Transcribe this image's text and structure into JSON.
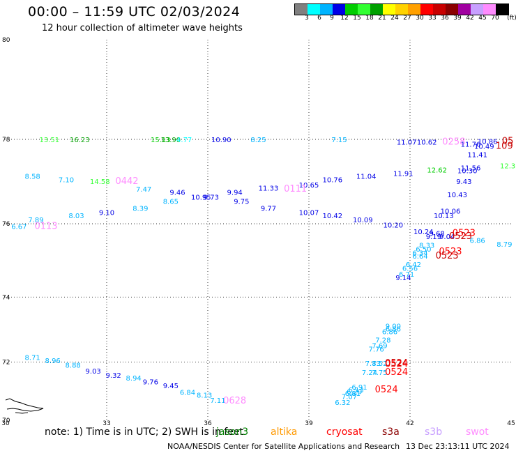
{
  "title": "00:00 – 11:59 UTC 02/03/2024",
  "subtitle": "12 hour collection of altimeter wave heights",
  "colorbar": {
    "colors": [
      "#808080",
      "#00ffff",
      "#00b4ff",
      "#0000e6",
      "#00cd00",
      "#32ff32",
      "#00a000",
      "#ffff00",
      "#ffd200",
      "#ffa000",
      "#ff0000",
      "#c80000",
      "#8b0000",
      "#a000a0",
      "#c8a0ff",
      "#ff8cff",
      "#000000"
    ],
    "labels": [
      "3",
      "6",
      "9",
      "12",
      "15",
      "18",
      "21",
      "24",
      "27",
      "30",
      "33",
      "36",
      "39",
      "42",
      "45",
      "70"
    ],
    "unit": "(ft)"
  },
  "axes": {
    "lon_labels": [
      "30",
      "33",
      "36",
      "39",
      "42",
      "45"
    ],
    "lat_labels": [
      "80",
      "78",
      "76",
      "74",
      "72",
      "70"
    ]
  },
  "observations": [
    {
      "text": "13.51",
      "lon": 31.3,
      "lat": 77.94,
      "color": "#32ff32"
    },
    {
      "text": "16.23",
      "lon": 32.2,
      "lat": 77.94,
      "color": "#00a000"
    },
    {
      "text": "15.13",
      "lon": 34.6,
      "lat": 77.94,
      "color": "#00cd00"
    },
    {
      "text": "13.90",
      "lon": 34.9,
      "lat": 77.94,
      "color": "#00a000"
    },
    {
      "text": "4.77",
      "lon": 35.3,
      "lat": 77.94,
      "color": "#00ffff"
    },
    {
      "text": "10.90",
      "lon": 36.4,
      "lat": 77.94,
      "color": "#0000e6"
    },
    {
      "text": "8.25",
      "lon": 37.5,
      "lat": 77.94,
      "color": "#00b4ff"
    },
    {
      "text": "7.15",
      "lon": 39.9,
      "lat": 77.94,
      "color": "#00b4ff"
    },
    {
      "text": "11.07",
      "lon": 41.9,
      "lat": 77.88,
      "color": "#0000e6"
    },
    {
      "text": "10.62",
      "lon": 42.5,
      "lat": 77.88,
      "color": "#0000e6"
    },
    {
      "text": "0258",
      "lon": 43.3,
      "lat": 77.88,
      "color": "#ff8cff",
      "type": "time"
    },
    {
      "text": "10.86",
      "lon": 44.3,
      "lat": 77.9,
      "color": "#0000e6"
    },
    {
      "text": "05",
      "lon": 44.9,
      "lat": 77.9,
      "color": "#c80000",
      "type": "time"
    },
    {
      "text": "11.76",
      "lon": 43.8,
      "lat": 77.84,
      "color": "#0000e6"
    },
    {
      "text": "10.49",
      "lon": 44.2,
      "lat": 77.79,
      "color": "#0000e6"
    },
    {
      "text": "109",
      "lon": 44.8,
      "lat": 77.79,
      "color": "#c80000",
      "type": "time"
    },
    {
      "text": "11.41",
      "lon": 44.0,
      "lat": 77.6,
      "color": "#0000e6"
    },
    {
      "text": "12.3",
      "lon": 44.9,
      "lat": 77.35,
      "color": "#32ff32"
    },
    {
      "text": "8.58",
      "lon": 30.8,
      "lat": 77.1,
      "color": "#00b4ff"
    },
    {
      "text": "7.10",
      "lon": 31.8,
      "lat": 77.02,
      "color": "#00b4ff"
    },
    {
      "text": "11.91",
      "lon": 41.8,
      "lat": 77.17,
      "color": "#0000e6"
    },
    {
      "text": "12.62",
      "lon": 42.8,
      "lat": 77.25,
      "color": "#00cd00"
    },
    {
      "text": "11.56",
      "lon": 43.8,
      "lat": 77.3,
      "color": "#0000e6"
    },
    {
      "text": "10.30",
      "lon": 43.7,
      "lat": 77.23,
      "color": "#0000e6"
    },
    {
      "text": "11.04",
      "lon": 40.7,
      "lat": 77.1,
      "color": "#0000e6"
    },
    {
      "text": "10.76",
      "lon": 39.7,
      "lat": 77.02,
      "color": "#0000e6"
    },
    {
      "text": "9.43",
      "lon": 43.6,
      "lat": 76.98,
      "color": "#0000e6"
    },
    {
      "text": "14.58",
      "lon": 32.8,
      "lat": 76.98,
      "color": "#32ff32"
    },
    {
      "text": "0442",
      "lon": 33.6,
      "lat": 76.98,
      "color": "#ff8cff",
      "type": "time"
    },
    {
      "text": "7.47",
      "lon": 34.1,
      "lat": 76.8,
      "color": "#00b4ff"
    },
    {
      "text": "10.65",
      "lon": 39.0,
      "lat": 76.9,
      "color": "#0000e6"
    },
    {
      "text": "0111",
      "lon": 38.6,
      "lat": 76.8,
      "color": "#ff8cff",
      "type": "time"
    },
    {
      "text": "11.33",
      "lon": 37.8,
      "lat": 76.82,
      "color": "#0000e6"
    },
    {
      "text": "9.46",
      "lon": 35.1,
      "lat": 76.72,
      "color": "#0000e6"
    },
    {
      "text": "9.94",
      "lon": 36.8,
      "lat": 76.72,
      "color": "#0000e6"
    },
    {
      "text": "10.43",
      "lon": 43.4,
      "lat": 76.66,
      "color": "#0000e6"
    },
    {
      "text": "10.95",
      "lon": 35.8,
      "lat": 76.6,
      "color": "#0000e6"
    },
    {
      "text": "9.73",
      "lon": 36.1,
      "lat": 76.6,
      "color": "#0000e6"
    },
    {
      "text": "8.65",
      "lon": 34.9,
      "lat": 76.5,
      "color": "#00b4ff"
    },
    {
      "text": "9.75",
      "lon": 37.0,
      "lat": 76.5,
      "color": "#0000e6"
    },
    {
      "text": "9.77",
      "lon": 37.8,
      "lat": 76.33,
      "color": "#0000e6"
    },
    {
      "text": "8.39",
      "lon": 34.0,
      "lat": 76.33,
      "color": "#00b4ff"
    },
    {
      "text": "9.10",
      "lon": 33.0,
      "lat": 76.22,
      "color": "#0000e6"
    },
    {
      "text": "10.07",
      "lon": 39.0,
      "lat": 76.22,
      "color": "#0000e6"
    },
    {
      "text": "10.06",
      "lon": 43.2,
      "lat": 76.26,
      "color": "#0000e6"
    },
    {
      "text": "10.13",
      "lon": 43.0,
      "lat": 76.14,
      "color": "#0000e6"
    },
    {
      "text": "8.03",
      "lon": 32.1,
      "lat": 76.14,
      "color": "#00b4ff"
    },
    {
      "text": "10.42",
      "lon": 39.7,
      "lat": 76.14,
      "color": "#0000e6"
    },
    {
      "text": "10.09",
      "lon": 40.6,
      "lat": 76.04,
      "color": "#0000e6"
    },
    {
      "text": "7.89",
      "lon": 30.9,
      "lat": 76.04,
      "color": "#00b4ff"
    },
    {
      "text": "6.67",
      "lon": 30.4,
      "lat": 75.87,
      "color": "#00b4ff"
    },
    {
      "text": "0113",
      "lon": 31.2,
      "lat": 75.87,
      "color": "#ff8cff",
      "type": "time"
    },
    {
      "text": "10.20",
      "lon": 41.5,
      "lat": 75.9,
      "color": "#0000e6"
    },
    {
      "text": "10.24",
      "lon": 42.4,
      "lat": 75.73,
      "color": "#0000e6"
    },
    {
      "text": "9.68",
      "lon": 42.8,
      "lat": 75.69,
      "color": "#0000e6"
    },
    {
      "text": "0523",
      "lon": 43.6,
      "lat": 75.69,
      "color": "#ff0000",
      "type": "time"
    },
    {
      "text": "9.19",
      "lon": 42.7,
      "lat": 75.6,
      "color": "#0000e6"
    },
    {
      "text": "9.04",
      "lon": 43.1,
      "lat": 75.6,
      "color": "#0000e6"
    },
    {
      "text": "0523",
      "lon": 43.5,
      "lat": 75.6,
      "color": "#c80000",
      "type": "time"
    },
    {
      "text": "6.86",
      "lon": 44.0,
      "lat": 75.5,
      "color": "#00b4ff"
    },
    {
      "text": "8.79",
      "lon": 44.8,
      "lat": 75.4,
      "color": "#00b4ff"
    },
    {
      "text": "8.33",
      "lon": 42.5,
      "lat": 75.37,
      "color": "#00b4ff"
    },
    {
      "text": "6.50",
      "lon": 42.4,
      "lat": 75.27,
      "color": "#00b4ff"
    },
    {
      "text": "0523",
      "lon": 43.2,
      "lat": 75.2,
      "color": "#ff0000",
      "type": "time"
    },
    {
      "text": "6.34",
      "lon": 42.3,
      "lat": 75.17,
      "color": "#00b4ff"
    },
    {
      "text": "0523",
      "lon": 43.1,
      "lat": 75.08,
      "color": "#c80000",
      "type": "time"
    },
    {
      "text": "6.64",
      "lon": 42.3,
      "lat": 75.08,
      "color": "#00b4ff"
    },
    {
      "text": "6.42",
      "lon": 42.1,
      "lat": 74.85,
      "color": "#00b4ff"
    },
    {
      "text": "6.56",
      "lon": 42.0,
      "lat": 74.75,
      "color": "#00b4ff"
    },
    {
      "text": "6.71",
      "lon": 41.9,
      "lat": 74.58,
      "color": "#00b4ff"
    },
    {
      "text": "9.14",
      "lon": 41.8,
      "lat": 74.48,
      "color": "#0000e6"
    },
    {
      "text": "9.00",
      "lon": 41.5,
      "lat": 73.06,
      "color": "#00b4ff"
    },
    {
      "text": "6.86",
      "lon": 41.5,
      "lat": 72.97,
      "color": "#00b4ff"
    },
    {
      "text": "6.86",
      "lon": 41.4,
      "lat": 72.89,
      "color": "#00b4ff"
    },
    {
      "text": "7.28",
      "lon": 41.2,
      "lat": 72.62,
      "color": "#00b4ff"
    },
    {
      "text": "7.69",
      "lon": 41.1,
      "lat": 72.45,
      "color": "#00b4ff"
    },
    {
      "text": "7.76",
      "lon": 41.0,
      "lat": 72.33,
      "color": "#00b4ff"
    },
    {
      "text": "8.71",
      "lon": 30.8,
      "lat": 72.07,
      "color": "#00b4ff"
    },
    {
      "text": "8.96",
      "lon": 31.4,
      "lat": 71.96,
      "color": "#00b4ff"
    },
    {
      "text": "8.88",
      "lon": 32.0,
      "lat": 71.82,
      "color": "#00b4ff"
    },
    {
      "text": "7.83",
      "lon": 40.9,
      "lat": 71.87,
      "color": "#00b4ff"
    },
    {
      "text": "7.52",
      "lon": 41.1,
      "lat": 71.87,
      "color": "#00b4ff"
    },
    {
      "text": "0524",
      "lon": 41.6,
      "lat": 71.87,
      "color": "#c80000",
      "type": "time"
    },
    {
      "text": "0524",
      "lon": 41.6,
      "lat": 71.84,
      "color": "#ff0000",
      "type": "time"
    },
    {
      "text": "9.03",
      "lon": 32.6,
      "lat": 71.62,
      "color": "#0000e6"
    },
    {
      "text": "7.24",
      "lon": 40.8,
      "lat": 71.57,
      "color": "#00b4ff"
    },
    {
      "text": "7.75",
      "lon": 41.1,
      "lat": 71.57,
      "color": "#00b4ff"
    },
    {
      "text": "0524",
      "lon": 41.6,
      "lat": 71.57,
      "color": "#ff0000",
      "type": "time"
    },
    {
      "text": "9.32",
      "lon": 33.2,
      "lat": 71.48,
      "color": "#0000e6"
    },
    {
      "text": "8.94",
      "lon": 33.8,
      "lat": 71.38,
      "color": "#00b4ff"
    },
    {
      "text": "9.76",
      "lon": 34.3,
      "lat": 71.25,
      "color": "#0000e6"
    },
    {
      "text": "9.45",
      "lon": 34.9,
      "lat": 71.12,
      "color": "#0000e6"
    },
    {
      "text": "6.91",
      "lon": 40.5,
      "lat": 71.08,
      "color": "#00b4ff"
    },
    {
      "text": "6.13",
      "lon": 40.4,
      "lat": 70.98,
      "color": "#00b4ff"
    },
    {
      "text": "0524",
      "lon": 41.3,
      "lat": 70.98,
      "color": "#ff0000",
      "type": "time"
    },
    {
      "text": "6.29",
      "lon": 40.35,
      "lat": 70.92,
      "color": "#00b4ff"
    },
    {
      "text": "6.84",
      "lon": 35.4,
      "lat": 70.9,
      "color": "#00b4ff"
    },
    {
      "text": "6.81",
      "lon": 40.3,
      "lat": 70.86,
      "color": "#00b4ff"
    },
    {
      "text": "8.13",
      "lon": 35.9,
      "lat": 70.8,
      "color": "#00b4ff"
    },
    {
      "text": "7.07",
      "lon": 40.2,
      "lat": 70.75,
      "color": "#00b4ff"
    },
    {
      "text": "7.11",
      "lon": 36.3,
      "lat": 70.62,
      "color": "#00b4ff"
    },
    {
      "text": "0628",
      "lon": 36.8,
      "lat": 70.6,
      "color": "#ff8cff",
      "type": "time"
    },
    {
      "text": "6.32",
      "lon": 40.0,
      "lat": 70.55,
      "color": "#00b4ff"
    }
  ],
  "note": "note:  1) Time is in UTC; 2) SWH is in feet",
  "legend": [
    {
      "label": "jason3",
      "color": "#008000"
    },
    {
      "label": "altika",
      "color": "#ff9900"
    },
    {
      "label": "cryosat",
      "color": "#ff0000"
    },
    {
      "label": "s3a",
      "color": "#8b0000"
    },
    {
      "label": "s3b",
      "color": "#c8a0ff"
    },
    {
      "label": "swot",
      "color": "#ff8cff"
    }
  ],
  "footer": {
    "credit": "NOAA/NESDIS Center for Satellite Applications and Research",
    "timestamp": "13 Dec 23:13:11 UTC 2024"
  }
}
